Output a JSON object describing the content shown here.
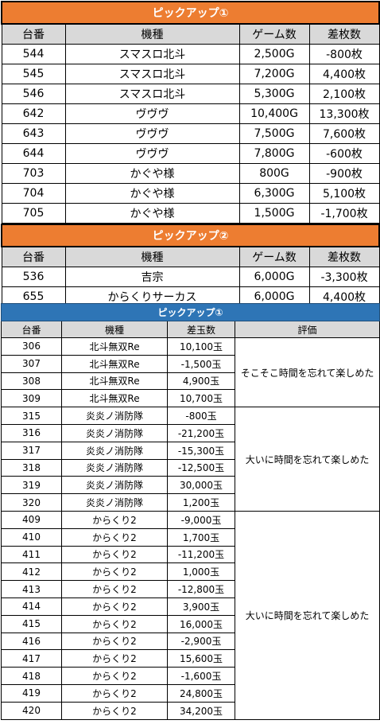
{
  "slot_tables": [
    {
      "title": "ピックアップ①",
      "headers": [
        "台番",
        "機種",
        "ゲーム数",
        "差枚数"
      ],
      "rows": [
        [
          "544",
          "スマスロ北斗",
          "2,500G",
          "-800枚"
        ],
        [
          "545",
          "スマスロ北斗",
          "7,200G",
          "4,400枚"
        ],
        [
          "546",
          "スマスロ北斗",
          "5,300G",
          "2,100枚"
        ],
        [
          "642",
          "ヴヴヴ",
          "10,400G",
          "13,300枚"
        ],
        [
          "643",
          "ヴヴヴ",
          "7,500G",
          "7,600枚"
        ],
        [
          "644",
          "ヴヴヴ",
          "7,800G",
          "-600枚"
        ],
        [
          "703",
          "かぐや様",
          "800G",
          "-900枚"
        ],
        [
          "704",
          "かぐや様",
          "6,300G",
          "5,100枚"
        ],
        [
          "705",
          "かぐや様",
          "1,500G",
          "-1,700枚"
        ]
      ]
    },
    {
      "title": "ピックアップ②",
      "headers": [
        "台番",
        "機種",
        "ゲーム数",
        "差枚数"
      ],
      "rows": [
        [
          "536",
          "吉宗",
          "6,000G",
          "-3,300枚"
        ],
        [
          "655",
          "からくりサーカス",
          "6,000G",
          "4,400枚"
        ]
      ]
    }
  ],
  "pachinko_table": {
    "title": "ピックアップ①",
    "headers": [
      "台番",
      "機種",
      "差玉数",
      "評価"
    ],
    "rows": [
      [
        "306",
        "北斗無双Re",
        "10,100玉"
      ],
      [
        "307",
        "北斗無双Re",
        "-1,500玉"
      ],
      [
        "308",
        "北斗無双Re",
        "4,900玉"
      ],
      [
        "309",
        "北斗無双Re",
        "10,700玉"
      ],
      [
        "315",
        "炎炎ノ消防隊",
        "-800玉"
      ],
      [
        "316",
        "炎炎ノ消防隊",
        "-21,200玉"
      ],
      [
        "317",
        "炎炎ノ消防隊",
        "-15,300玉"
      ],
      [
        "318",
        "炎炎ノ消防隊",
        "-12,500玉"
      ],
      [
        "319",
        "炎炎ノ消防隊",
        "30,000玉"
      ],
      [
        "320",
        "炎炎ノ消防隊",
        "1,200玉"
      ],
      [
        "409",
        "からくり2",
        "-9,000玉"
      ],
      [
        "410",
        "からくり2",
        "1,700玉"
      ],
      [
        "411",
        "からくり2",
        "-11,200玉"
      ],
      [
        "412",
        "からくり2",
        "1,000玉"
      ],
      [
        "413",
        "からくり2",
        "-12,800玉"
      ],
      [
        "414",
        "からくり2",
        "3,900玉"
      ],
      [
        "415",
        "からくり2",
        "16,000玉"
      ],
      [
        "416",
        "からくり2",
        "-2,900玉"
      ],
      [
        "417",
        "からくり2",
        "15,600玉"
      ],
      [
        "418",
        "からくり2",
        "-1,600玉"
      ],
      [
        "419",
        "からくり2",
        "24,800玉"
      ],
      [
        "420",
        "からくり2",
        "34,200玉"
      ]
    ],
    "evaluations": [
      {
        "text": "そこそこ時間を忘れて楽しめた",
        "start": 0,
        "span": 4
      },
      {
        "text": "大いに時間を忘れて楽しめた",
        "start": 4,
        "span": 6
      },
      {
        "text": "大いに時間を忘れて楽しめた",
        "start": 10,
        "span": 12
      }
    ]
  },
  "colors": {
    "slot_title_bg": "#ED7D31",
    "pachinko_title_bg": "#2E75B6",
    "header_bg": "#D9D9D9"
  }
}
